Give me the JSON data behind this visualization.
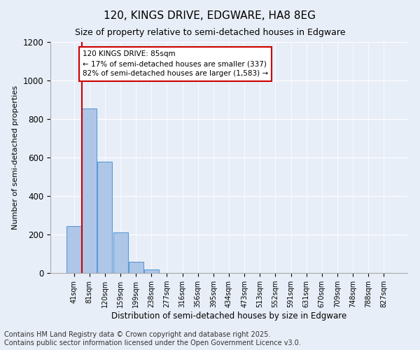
{
  "title": "120, KINGS DRIVE, EDGWARE, HA8 8EG",
  "subtitle": "Size of property relative to semi-detached houses in Edgware",
  "xlabel": "Distribution of semi-detached houses by size in Edgware",
  "ylabel": "Number of semi-detached properties",
  "categories": [
    "41sqm",
    "81sqm",
    "120sqm",
    "159sqm",
    "199sqm",
    "238sqm",
    "277sqm",
    "316sqm",
    "356sqm",
    "395sqm",
    "434sqm",
    "473sqm",
    "513sqm",
    "552sqm",
    "591sqm",
    "631sqm",
    "670sqm",
    "709sqm",
    "748sqm",
    "788sqm",
    "827sqm"
  ],
  "values": [
    245,
    855,
    580,
    210,
    60,
    18,
    0,
    0,
    0,
    0,
    0,
    0,
    0,
    0,
    0,
    0,
    0,
    0,
    0,
    0,
    0
  ],
  "bar_color": "#aec6e8",
  "bar_edge_color": "#5b9bd5",
  "annotation_text": "120 KINGS DRIVE: 85sqm\n← 17% of semi-detached houses are smaller (337)\n82% of semi-detached houses are larger (1,583) →",
  "vline_color": "#cc0000",
  "annotation_box_edge": "#cc0000",
  "ylim": [
    0,
    1200
  ],
  "yticks": [
    0,
    200,
    400,
    600,
    800,
    1000,
    1200
  ],
  "footer": "Contains HM Land Registry data © Crown copyright and database right 2025.\nContains public sector information licensed under the Open Government Licence v3.0.",
  "bg_color": "#e8eef8",
  "fig_bg_color": "#e8eef8",
  "title_fontsize": 11,
  "subtitle_fontsize": 9,
  "footer_fontsize": 7
}
